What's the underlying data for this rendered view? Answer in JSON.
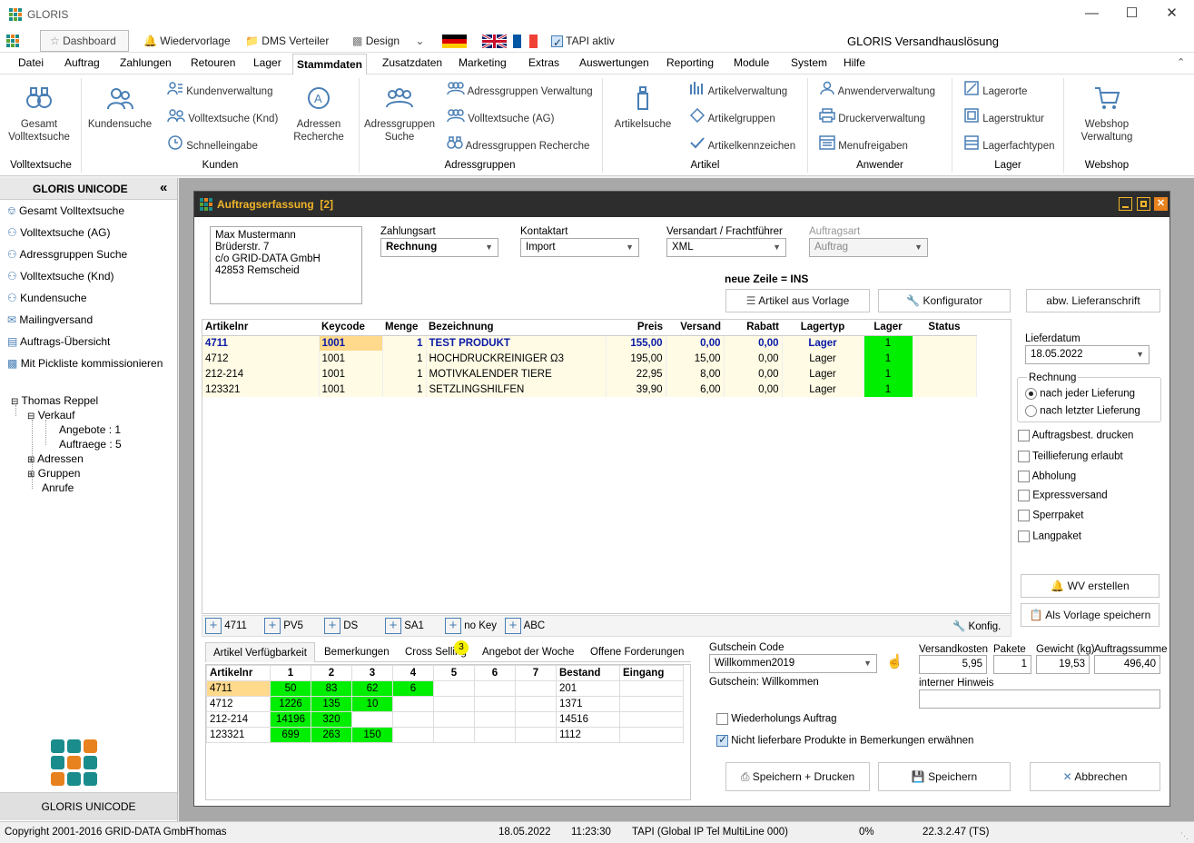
{
  "titlebar": {
    "title": "GLORIS"
  },
  "quickbar": {
    "dashboard": "Dashboard",
    "wiedervorlage": "Wiedervorlage",
    "dms": "DMS Verteiler",
    "design": "Design",
    "tapi": "TAPI aktiv",
    "app_title": "GLORIS Versandhauslösung"
  },
  "menu": [
    "Datei",
    "Auftrag",
    "Zahlungen",
    "Retouren",
    "Lager",
    "Stammdaten",
    "Zusatzdaten",
    "Marketing",
    "Extras",
    "Auswertungen",
    "Reporting",
    "Module",
    "System",
    "Hilfe"
  ],
  "ribbon": {
    "gesamt": "Gesamt Volltextsuche",
    "kundensuche": "Kundensuche",
    "kundenverwaltung": "Kundenverwaltung",
    "volltext_knd": "Volltextsuche (Knd)",
    "schnelleingabe": "Schnelleingabe",
    "adressen_recherche": "Adressen Recherche",
    "adressgruppen_suche": "Adressgruppen Suche",
    "ag_verwaltung": "Adressgruppen Verwaltung",
    "volltext_ag": "Volltextsuche (AG)",
    "ag_recherche": "Adressgruppen Recherche",
    "artikelsuche": "Artikelsuche",
    "artikelverwaltung": "Artikelverwaltung",
    "artikelgruppen": "Artikelgruppen",
    "artikelkennzeichen": "Artikelkennzeichen",
    "anwenderverwaltung": "Anwenderverwaltung",
    "druckerverwaltung": "Druckerverwaltung",
    "menufreigaben": "Menufreigaben",
    "lagerorte": "Lagerorte",
    "lagerstruktur": "Lagerstruktur",
    "lagerfachtypen": "Lagerfachtypen",
    "webshop_verwaltung": "Webshop Verwaltung",
    "groups": {
      "volltext": "Volltextsuche",
      "kunden": "Kunden",
      "adressgruppen": "Adressgruppen",
      "artikel": "Artikel",
      "anwender": "Anwender",
      "lager": "Lager",
      "webshop": "Webshop"
    }
  },
  "sidebar": {
    "header": "GLORIS UNICODE",
    "items": [
      "Gesamt Volltextsuche",
      "Volltextsuche (AG)",
      "Adressgruppen Suche",
      "Volltextsuche (Knd)",
      "Kundensuche",
      "Mailingversand",
      "Auftrags-Übersicht",
      "Mit Pickliste kommissionieren"
    ],
    "tree": {
      "root": "Thomas Reppel",
      "verkauf": "Verkauf",
      "angebote": "Angebote : 1",
      "auftraege": "Auftraege : 5",
      "adressen": "Adressen",
      "gruppen": "Gruppen",
      "anrufe": "Anrufe"
    },
    "footer": "GLORIS UNICODE"
  },
  "order": {
    "title": "Auftragserfassung  [2]",
    "address": [
      "Max Mustermann",
      "Brüderstr. 7",
      "c/o GRID-DATA GmbH",
      "42853 Remscheid"
    ],
    "zahlungsart_label": "Zahlungsart",
    "zahlungsart": "Rechnung",
    "kontaktart_label": "Kontaktart",
    "kontaktart": "Import",
    "versandart_label": "Versandart / Frachtführer",
    "versandart": "XML",
    "auftragsart_label": "Auftragsart",
    "auftragsart": "Auftrag",
    "hint": "neue Zeile = INS",
    "btn_vorlage": "Artikel aus Vorlage",
    "btn_konfig": "Konfigurator",
    "btn_lieferanschrift": "abw. Lieferanschrift",
    "columns": [
      "Artikelnr",
      "Keycode",
      "Menge",
      "Bezeichnung",
      "Preis",
      "Versand",
      "Rabatt",
      "Lagertyp",
      "Lager",
      "Status"
    ],
    "rows": [
      {
        "artikelnr": "4711",
        "keycode": "1001",
        "menge": "1",
        "bez": "TEST PRODUKT",
        "preis": "155,00",
        "versand": "0,00",
        "rabatt": "0,00",
        "lagertyp": "Lager",
        "lager": "1",
        "status": ""
      },
      {
        "artikelnr": "4712",
        "keycode": "1001",
        "menge": "1",
        "bez": "HOCHDRUCKREINIGER Ω3",
        "preis": "195,00",
        "versand": "15,00",
        "rabatt": "0,00",
        "lagertyp": "Lager",
        "lager": "1",
        "status": ""
      },
      {
        "artikelnr": "212-214",
        "keycode": "1001",
        "menge": "1",
        "bez": "MOTIVKALENDER TIERE",
        "preis": "22,95",
        "versand": "8,00",
        "rabatt": "0,00",
        "lagertyp": "Lager",
        "lager": "1",
        "status": ""
      },
      {
        "artikelnr": "123321",
        "keycode": "1001",
        "menge": "1",
        "bez": "SETZLINGSHILFEN",
        "preis": "39,90",
        "versand": "6,00",
        "rabatt": "0,00",
        "lagertyp": "Lager",
        "lager": "1",
        "status": ""
      }
    ],
    "lieferdatum_label": "Lieferdatum",
    "lieferdatum": "18.05.2022",
    "rechnung_label": "Rechnung",
    "rechnung_opt1": "nach jeder Lieferung",
    "rechnung_opt2": "nach letzter Lieferung",
    "checks": [
      "Auftragsbest. drucken",
      "Teillieferung erlaubt",
      "Abholung",
      "Expressversand",
      "Sperrpaket",
      "Langpaket"
    ],
    "btn_wv": "WV erstellen",
    "btn_vorlage_speichern": "Als Vorlage speichern",
    "quick_keys": [
      "4711",
      "PV5",
      "DS",
      "SA1",
      "no Key",
      "ABC"
    ],
    "konfig": "Konfig.",
    "tabs": [
      "Artikel Verfügbarkeit",
      "Bemerkungen",
      "Cross Selling",
      "Angebot der Woche",
      "Offene Forderungen"
    ],
    "cross_badge": "3",
    "avail_cols": [
      "Artikelnr",
      "1",
      "2",
      "3",
      "4",
      "5",
      "6",
      "7",
      "Bestand",
      "Eingang"
    ],
    "avail_rows": [
      {
        "nr": "4711",
        "v": [
          "50",
          "83",
          "62",
          "6",
          "",
          "",
          ""
        ],
        "bestand": "201",
        "eingang": ""
      },
      {
        "nr": "4712",
        "v": [
          "1226",
          "135",
          "10",
          "",
          "",
          "",
          ""
        ],
        "bestand": "1371",
        "eingang": ""
      },
      {
        "nr": "212-214",
        "v": [
          "14196",
          "320",
          "",
          "",
          "",
          "",
          ""
        ],
        "bestand": "14516",
        "eingang": ""
      },
      {
        "nr": "123321",
        "v": [
          "699",
          "263",
          "150",
          "",
          "",
          "",
          ""
        ],
        "bestand": "1112",
        "eingang": ""
      }
    ],
    "gutschein_label": "Gutschein Code",
    "gutschein": "Willkommen2019",
    "gutschein_info": "Gutschein: Willkommen",
    "wiederholung": "Wiederholungs Auftrag",
    "nicht_lieferbar": "Nicht lieferbare Produkte in Bemerkungen erwähnen",
    "versandkosten_label": "Versandkosten",
    "versandkosten": "5,95",
    "pakete_label": "Pakete",
    "pakete": "1",
    "gewicht_label": "Gewicht (kg)",
    "gewicht": "19,53",
    "summe_label": "Auftragssumme",
    "summe": "496,40",
    "hinweis_label": "interner Hinweis",
    "btn_speichern_drucken": "Speichern + Drucken",
    "btn_speichern": "Speichern",
    "btn_abbrechen": "Abbrechen"
  },
  "status": {
    "copyright": "Copyright 2001-2016 GRID-DATA GmbH",
    "user": "Thomas",
    "date": "18.05.2022",
    "time": "11:23:30",
    "tapi": "TAPI (Global IP Tel MultiLine 000)",
    "percent": "0%",
    "version": "22.3.2.47 (TS)"
  }
}
